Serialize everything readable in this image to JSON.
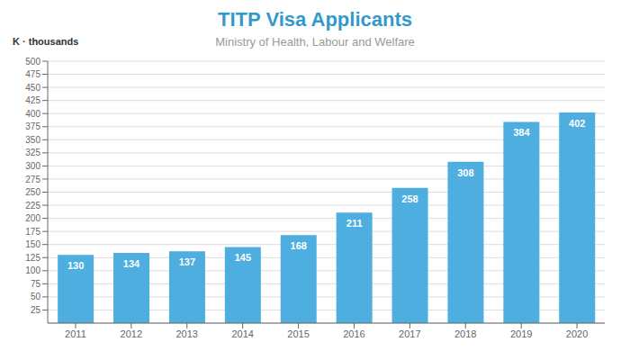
{
  "chart_data": {
    "type": "bar",
    "title": "TITP Visa Applicants",
    "subtitle": "Ministry of Health, Labour and Welfare",
    "ylabel": "K · thousands",
    "categories": [
      "2011",
      "2012",
      "2013",
      "2014",
      "2015",
      "2016",
      "2017",
      "2018",
      "2019",
      "2020"
    ],
    "values": [
      130,
      134,
      137,
      145,
      168,
      211,
      258,
      308,
      384,
      402
    ],
    "color": "#4DAEDF",
    "ylim": [
      0,
      500
    ],
    "yticks": [
      25,
      50,
      75,
      100,
      125,
      150,
      175,
      200,
      225,
      250,
      275,
      300,
      325,
      350,
      375,
      400,
      425,
      450,
      475,
      500
    ],
    "grid": true,
    "data_labels": true
  }
}
